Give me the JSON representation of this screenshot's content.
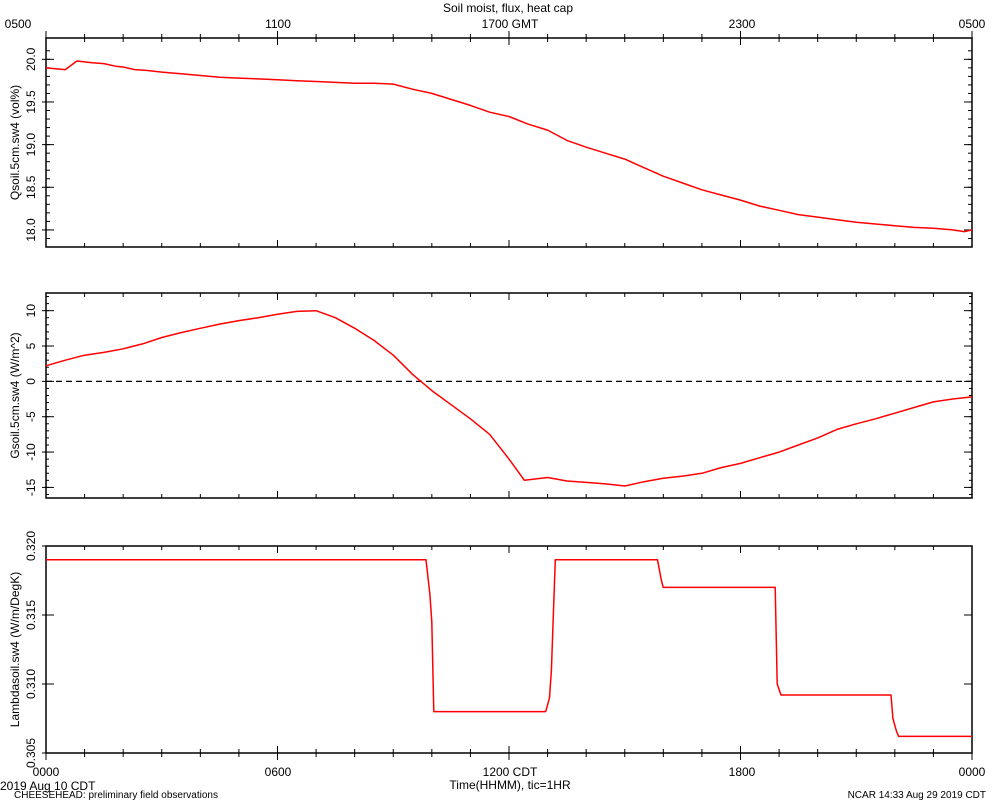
{
  "title": "Soil moist, flux, heat cap",
  "chart_data": [
    {
      "type": "line",
      "ylabel": "Qsoil.5cm.sw4 (vol%)",
      "ylim": [
        17.8,
        20.25
      ],
      "yticks": [
        "18.0",
        "18.5",
        "19.0",
        "19.5",
        "20.0"
      ],
      "color": "#ff0000",
      "series": [
        {
          "x": [
            0,
            0.5,
            0.8,
            1.0,
            1.2,
            1.5,
            1.8,
            2.0,
            2.3,
            2.6,
            3.0,
            3.5,
            4.0,
            4.5,
            5.0,
            5.5,
            6.0,
            6.5,
            7.0,
            7.5,
            8.0,
            8.5,
            9.0,
            9.5,
            10.0,
            10.5,
            11.0,
            11.5,
            12.0,
            12.5,
            13.0,
            13.5,
            14.0,
            14.5,
            15.0,
            15.5,
            16.0,
            16.5,
            17.0,
            17.5,
            18.0,
            18.5,
            19.0,
            19.5,
            20.0,
            20.5,
            21.0,
            21.5,
            22.0,
            22.5,
            23.0,
            23.5,
            23.8,
            24.0
          ],
          "y": [
            19.9,
            19.88,
            19.98,
            19.97,
            19.96,
            19.95,
            19.92,
            19.91,
            19.88,
            19.87,
            19.85,
            19.83,
            19.81,
            19.79,
            19.78,
            19.77,
            19.76,
            19.75,
            19.74,
            19.73,
            19.72,
            19.72,
            19.71,
            19.65,
            19.6,
            19.53,
            19.46,
            19.38,
            19.33,
            19.24,
            19.17,
            19.05,
            18.97,
            18.9,
            18.83,
            18.73,
            18.63,
            18.55,
            18.47,
            18.41,
            18.35,
            18.28,
            18.23,
            18.18,
            18.15,
            18.12,
            18.09,
            18.07,
            18.05,
            18.03,
            18.02,
            18.0,
            17.98,
            18.0
          ]
        }
      ]
    },
    {
      "type": "line",
      "ylabel": "Gsoil.5cm.sw4 (W/m^2)",
      "ylim": [
        -16.5,
        12.5
      ],
      "yticks": [
        "-15",
        "-10",
        "-5",
        "0",
        "5",
        "10"
      ],
      "zero_line": true,
      "color": "#ff0000",
      "series": [
        {
          "x": [
            0,
            0.5,
            1.0,
            1.5,
            2.0,
            2.5,
            3.0,
            3.5,
            4.0,
            4.5,
            5.0,
            5.5,
            6.0,
            6.5,
            7.0,
            7.5,
            8.0,
            8.5,
            9.0,
            9.5,
            10.0,
            10.5,
            11.0,
            11.5,
            12.0,
            12.2,
            12.4,
            12.7,
            13.0,
            13.5,
            14.0,
            14.5,
            15.0,
            15.5,
            16.0,
            16.5,
            17.0,
            17.5,
            18.0,
            18.5,
            19.0,
            19.5,
            20.0,
            20.5,
            21.0,
            21.5,
            22.0,
            22.5,
            23.0,
            23.5,
            24.0
          ],
          "y": [
            2.2,
            3.0,
            3.7,
            4.1,
            4.6,
            5.3,
            6.2,
            6.9,
            7.5,
            8.1,
            8.6,
            9.0,
            9.5,
            9.9,
            10.0,
            9.0,
            7.5,
            5.8,
            3.7,
            1.0,
            -1.3,
            -3.3,
            -5.3,
            -7.5,
            -11.0,
            -12.5,
            -14.0,
            -13.8,
            -13.6,
            -14.1,
            -14.3,
            -14.5,
            -14.8,
            -14.2,
            -13.7,
            -13.4,
            -13.0,
            -12.2,
            -11.6,
            -10.8,
            -10.0,
            -9.0,
            -8.0,
            -6.8,
            -6.0,
            -5.3,
            -4.5,
            -3.7,
            -2.9,
            -2.5,
            -2.2
          ]
        }
      ]
    },
    {
      "type": "line",
      "ylabel": "Lambdasoil.sw4 (W/m/DegK)",
      "ylim": [
        0.305,
        0.32
      ],
      "yticks": [
        "0.305",
        "0.310",
        "0.315",
        "0.320"
      ],
      "color": "#ff0000",
      "series": [
        {
          "x": [
            0,
            9.85,
            9.95,
            10.0,
            10.05,
            12.95,
            13.05,
            13.1,
            13.2,
            15.85,
            15.95,
            16.0,
            18.9,
            18.95,
            19.05,
            21.9,
            21.95,
            22.05,
            22.1,
            24.0
          ],
          "y": [
            0.319,
            0.319,
            0.3165,
            0.3145,
            0.308,
            0.308,
            0.309,
            0.311,
            0.319,
            0.319,
            0.3175,
            0.317,
            0.317,
            0.31,
            0.3092,
            0.3092,
            0.3075,
            0.3065,
            0.3062,
            0.3062
          ]
        }
      ]
    }
  ],
  "top_axis": {
    "title": "Soil moist, flux, heat cap",
    "ticks": [
      "0500",
      "1100",
      "1700 GMT",
      "2300",
      "0500"
    ]
  },
  "bottom_axis": {
    "label": "Time(HHMM), tic=1HR",
    "ticks": [
      "0000",
      "0600",
      "1200 CDT",
      "1800",
      "0000"
    ]
  },
  "footer": {
    "date": "2019 Aug 10 CDT",
    "project": "CHEESEHEAD: preliminary field observations",
    "stamp": "NCAR 14:33 Aug 29 2019 CDT"
  }
}
